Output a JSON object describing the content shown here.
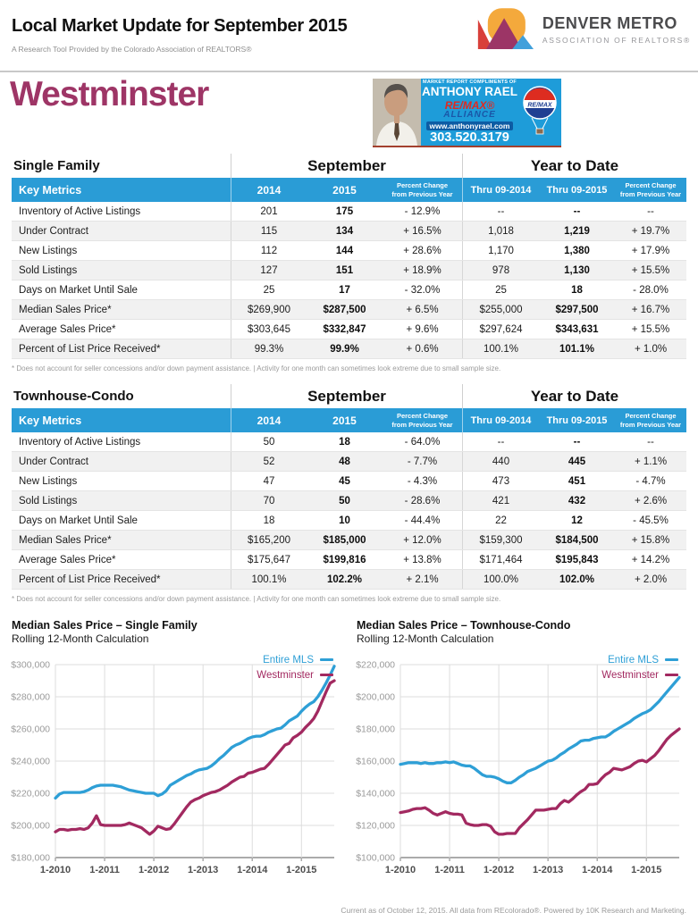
{
  "header": {
    "title": "Local Market Update for September 2015",
    "subtitle": "A Research Tool Provided by the Colorado Association of REALTORS®",
    "logo": {
      "line1": "DENVER METRO",
      "line2": "ASSOCIATION OF REALTORS®"
    }
  },
  "area_title": "Westminster",
  "ad": {
    "compliments": "MARKET REPORT COMPLIMENTS OF",
    "name": "ANTHONY RAEL",
    "brand": "RE/MAX®",
    "brand2": "ALLIANCE",
    "website": "www.anthonyrael.com",
    "phone": "303.520.3179",
    "balloon_label": "RE/MAX"
  },
  "colors": {
    "accent_blue": "#2A9CD6",
    "area_title_magenta": "#9E3566",
    "line_blue": "#2E9FD6",
    "line_magenta": "#A22960"
  },
  "tables": [
    {
      "section_label": "Single Family",
      "group1_label": "September",
      "group2_label": "Year to Date",
      "key_metrics_label": "Key Metrics",
      "columns": [
        {
          "label": "2014"
        },
        {
          "label": "2015",
          "bold": true
        },
        {
          "label": "Percent Change",
          "sub": "from Previous Year"
        },
        {
          "label": "Thru 09-2014",
          "small": true
        },
        {
          "label": "Thru 09-2015",
          "small": true,
          "bold": true
        },
        {
          "label": "Percent Change",
          "sub": "from Previous Year"
        }
      ],
      "rows": [
        {
          "metric": "Inventory of Active Listings",
          "values": [
            "201",
            "175",
            "- 12.9%",
            "--",
            "--",
            "--"
          ]
        },
        {
          "metric": "Under Contract",
          "values": [
            "115",
            "134",
            "+ 16.5%",
            "1,018",
            "1,219",
            "+ 19.7%"
          ]
        },
        {
          "metric": "New Listings",
          "values": [
            "112",
            "144",
            "+ 28.6%",
            "1,170",
            "1,380",
            "+ 17.9%"
          ]
        },
        {
          "metric": "Sold Listings",
          "values": [
            "127",
            "151",
            "+ 18.9%",
            "978",
            "1,130",
            "+ 15.5%"
          ]
        },
        {
          "metric": "Days on Market Until Sale",
          "values": [
            "25",
            "17",
            "- 32.0%",
            "25",
            "18",
            "- 28.0%"
          ]
        },
        {
          "metric": "Median Sales Price*",
          "values": [
            "$269,900",
            "$287,500",
            "+ 6.5%",
            "$255,000",
            "$297,500",
            "+ 16.7%"
          ]
        },
        {
          "metric": "Average Sales Price*",
          "values": [
            "$303,645",
            "$332,847",
            "+ 9.6%",
            "$297,624",
            "$343,631",
            "+ 15.5%"
          ]
        },
        {
          "metric": "Percent of List Price Received*",
          "values": [
            "99.3%",
            "99.9%",
            "+ 0.6%",
            "100.1%",
            "101.1%",
            "+ 1.0%"
          ]
        }
      ],
      "footnote": "* Does not account for seller concessions and/or down payment assistance.  |  Activity for one month can sometimes look extreme due to small sample size."
    },
    {
      "section_label": "Townhouse-Condo",
      "group1_label": "September",
      "group2_label": "Year to Date",
      "key_metrics_label": "Key Metrics",
      "columns": [
        {
          "label": "2014"
        },
        {
          "label": "2015",
          "bold": true
        },
        {
          "label": "Percent Change",
          "sub": "from Previous Year"
        },
        {
          "label": "Thru 09-2014",
          "small": true
        },
        {
          "label": "Thru 09-2015",
          "small": true,
          "bold": true
        },
        {
          "label": "Percent Change",
          "sub": "from Previous Year"
        }
      ],
      "rows": [
        {
          "metric": "Inventory of Active Listings",
          "values": [
            "50",
            "18",
            "- 64.0%",
            "--",
            "--",
            "--"
          ]
        },
        {
          "metric": "Under Contract",
          "values": [
            "52",
            "48",
            "- 7.7%",
            "440",
            "445",
            "+ 1.1%"
          ]
        },
        {
          "metric": "New Listings",
          "values": [
            "47",
            "45",
            "- 4.3%",
            "473",
            "451",
            "- 4.7%"
          ]
        },
        {
          "metric": "Sold Listings",
          "values": [
            "70",
            "50",
            "- 28.6%",
            "421",
            "432",
            "+ 2.6%"
          ]
        },
        {
          "metric": "Days on Market Until Sale",
          "values": [
            "18",
            "10",
            "- 44.4%",
            "22",
            "12",
            "- 45.5%"
          ]
        },
        {
          "metric": "Median Sales Price*",
          "values": [
            "$165,200",
            "$185,000",
            "+ 12.0%",
            "$159,300",
            "$184,500",
            "+ 15.8%"
          ]
        },
        {
          "metric": "Average Sales Price*",
          "values": [
            "$175,647",
            "$199,816",
            "+ 13.8%",
            "$171,464",
            "$195,843",
            "+ 14.2%"
          ]
        },
        {
          "metric": "Percent of List Price Received*",
          "values": [
            "100.1%",
            "102.2%",
            "+ 2.1%",
            "100.0%",
            "102.0%",
            "+ 2.0%"
          ]
        }
      ],
      "footnote": "* Does not account for seller concessions and/or down payment assistance.  |  Activity for one month can sometimes look extreme due to small sample size."
    }
  ],
  "chart_data": [
    {
      "type": "line",
      "title": "Median Sales Price – Single Family",
      "subtitle": "Rolling 12-Month Calculation",
      "legend_position": "top-right",
      "grid": true,
      "x_ticks": [
        "1-2010",
        "1-2011",
        "1-2012",
        "1-2013",
        "1-2014",
        "1-2015"
      ],
      "x_tick_indices": [
        0,
        12,
        24,
        36,
        48,
        60
      ],
      "ylim": [
        180000,
        300000
      ],
      "ytick_step": 20000,
      "series": [
        {
          "name": "Entire MLS",
          "color": "#2E9FD6",
          "values": [
            217000,
            219500,
            220500,
            220500,
            220500,
            220500,
            220500,
            221000,
            222000,
            223500,
            224500,
            225000,
            225000,
            225000,
            225000,
            224500,
            224000,
            223000,
            222000,
            221500,
            221000,
            220500,
            220000,
            220000,
            220000,
            218500,
            219500,
            221500,
            225000,
            226500,
            228000,
            229500,
            231000,
            232000,
            233500,
            234500,
            235000,
            235500,
            237000,
            239000,
            241500,
            243500,
            246000,
            248500,
            250000,
            251000,
            252500,
            254000,
            255000,
            255500,
            255500,
            256500,
            258000,
            259000,
            260000,
            260500,
            262500,
            265000,
            266500,
            268000,
            271000,
            273500,
            275500,
            277000,
            280000,
            284000,
            288500,
            293500,
            299000
          ]
        },
        {
          "name": "Westminster",
          "color": "#A22960",
          "values": [
            196000,
            197500,
            197500,
            197000,
            197500,
            197500,
            198000,
            197500,
            198500,
            201500,
            206000,
            200500,
            200000,
            200000,
            200000,
            200000,
            200000,
            200500,
            201500,
            200500,
            199500,
            198500,
            196500,
            194500,
            196500,
            199500,
            198500,
            197500,
            198000,
            201000,
            204500,
            208000,
            211500,
            214500,
            216000,
            217000,
            218500,
            219500,
            220500,
            221000,
            222000,
            223500,
            225000,
            227000,
            228500,
            230000,
            230500,
            232500,
            233000,
            234000,
            235000,
            235500,
            238000,
            241000,
            244000,
            247000,
            250000,
            251000,
            254500,
            256000,
            258000,
            261000,
            263500,
            266500,
            271000,
            277000,
            283000,
            288500,
            290000
          ]
        }
      ]
    },
    {
      "type": "line",
      "title": "Median Sales Price – Townhouse-Condo",
      "subtitle": "Rolling 12-Month Calculation",
      "legend_position": "top-right",
      "grid": true,
      "x_ticks": [
        "1-2010",
        "1-2011",
        "1-2012",
        "1-2013",
        "1-2014",
        "1-2015"
      ],
      "x_tick_indices": [
        0,
        12,
        24,
        36,
        48,
        60
      ],
      "ylim": [
        100000,
        220000
      ],
      "ytick_step": 20000,
      "series": [
        {
          "name": "Entire MLS",
          "color": "#2E9FD6",
          "values": [
            158000,
            158500,
            159000,
            159000,
            159000,
            158500,
            159000,
            158500,
            158500,
            159000,
            159000,
            159500,
            159000,
            159500,
            158500,
            157500,
            157000,
            157000,
            155500,
            153500,
            151500,
            150500,
            150500,
            150000,
            149000,
            147500,
            146500,
            146500,
            148000,
            150000,
            151500,
            153500,
            154500,
            155500,
            157000,
            158500,
            160000,
            160500,
            162000,
            164000,
            165500,
            167500,
            169000,
            170500,
            172500,
            173000,
            173000,
            174000,
            174500,
            175000,
            175000,
            176500,
            178500,
            180000,
            181500,
            183000,
            184500,
            186500,
            188000,
            189500,
            190500,
            192000,
            194500,
            197000,
            200000,
            203000,
            206000,
            209000,
            212000
          ]
        },
        {
          "name": "Westminster",
          "color": "#A22960",
          "values": [
            128000,
            128500,
            129000,
            130000,
            130500,
            130500,
            131000,
            129500,
            127500,
            126500,
            127500,
            128500,
            127500,
            127000,
            127000,
            126500,
            121500,
            120500,
            120000,
            120000,
            120500,
            120500,
            119500,
            116000,
            114500,
            114500,
            115000,
            115000,
            115000,
            118500,
            121000,
            123500,
            126500,
            129500,
            129500,
            129500,
            130000,
            130500,
            130500,
            133500,
            135500,
            134500,
            136500,
            139000,
            141000,
            142500,
            145500,
            145500,
            146000,
            149000,
            151500,
            153000,
            155500,
            155000,
            154500,
            155500,
            156500,
            158500,
            160000,
            160500,
            159500,
            161500,
            163500,
            166500,
            170000,
            173500,
            176000,
            178000,
            180000
          ]
        }
      ]
    }
  ],
  "footer": "Current as of October 12, 2015. All data from REcolorado®. Powered by 10K Research and Marketing."
}
